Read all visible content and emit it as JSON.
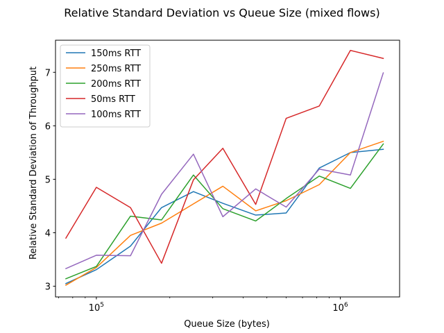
{
  "chart_data": {
    "type": "line",
    "title": "Relative Standard Deviation vs Queue Size (mixed flows)",
    "xlabel": "Queue Size (bytes)",
    "ylabel": "Relative Standard Deviation of Throughput",
    "xscale": "log",
    "xlim": [
      68000,
      1750000
    ],
    "ylim": [
      2.8,
      7.6
    ],
    "y_ticks": [
      3,
      4,
      5,
      6,
      7
    ],
    "y_tick_labels": [
      "3",
      "4",
      "5",
      "6",
      "7"
    ],
    "x_major_ticks": [
      100000,
      1000000
    ],
    "x_major_tick_labels": [
      "10^5",
      "10^6"
    ],
    "grid": false,
    "legend_position": "top-left",
    "x": [
      75000,
      100000,
      138000,
      185000,
      250000,
      330000,
      450000,
      600000,
      820000,
      1100000,
      1500000
    ],
    "series": [
      {
        "name": "150ms RTT",
        "color": "#1f77b4",
        "values": [
          3.05,
          3.31,
          3.75,
          4.47,
          4.77,
          4.55,
          4.33,
          4.37,
          5.21,
          5.5,
          5.56
        ]
      },
      {
        "name": "250ms RTT",
        "color": "#ff7f0e",
        "values": [
          3.02,
          3.35,
          3.95,
          4.18,
          4.54,
          4.87,
          4.41,
          4.6,
          4.9,
          5.5,
          5.71
        ]
      },
      {
        "name": "200ms RTT",
        "color": "#2ca02c",
        "values": [
          3.14,
          3.37,
          4.31,
          4.24,
          5.08,
          4.45,
          4.22,
          4.64,
          5.06,
          4.83,
          5.66
        ]
      },
      {
        "name": "50ms RTT",
        "color": "#d62728",
        "values": [
          3.9,
          4.85,
          4.47,
          3.43,
          4.99,
          5.58,
          4.53,
          6.14,
          6.37,
          7.41,
          7.26
        ]
      },
      {
        "name": "100ms RTT",
        "color": "#9467bd",
        "values": [
          3.33,
          3.58,
          3.57,
          4.72,
          5.47,
          4.3,
          4.82,
          4.48,
          5.19,
          5.08,
          6.99
        ]
      }
    ]
  }
}
